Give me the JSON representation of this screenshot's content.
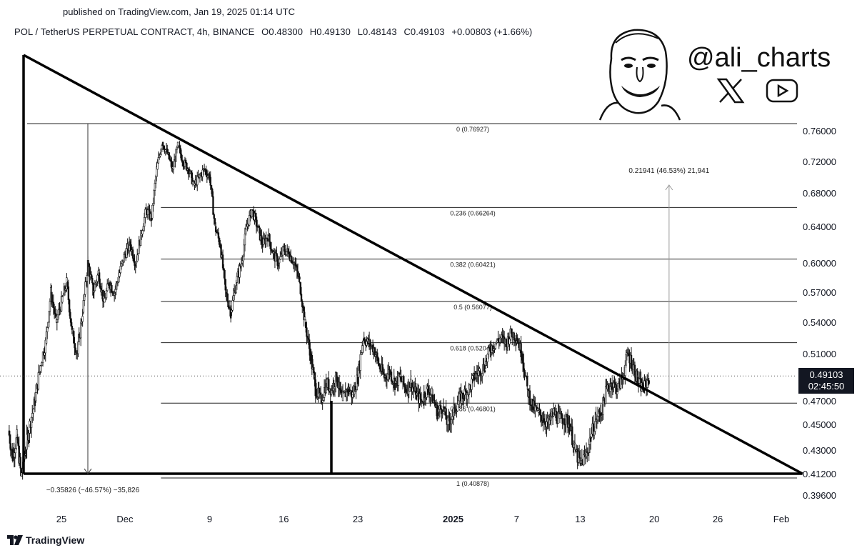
{
  "header": {
    "published": "published on TradingView.com, Jan 19, 2025 01:14 UTC",
    "symbol": "POL / TetherUS PERPETUAL CONTRACT, 4h, BINANCE",
    "open": "O0.48300",
    "high": "H0.49130",
    "low": "L0.48143",
    "close": "C0.49103",
    "change": "+0.00803 (+1.66%)"
  },
  "branding": {
    "handle": "@ali_charts",
    "footer": "TradingView",
    "icons": [
      "avatar-caricature-icon",
      "x-logo-icon",
      "youtube-icon",
      "tradingview-logo-icon"
    ]
  },
  "price_badge": {
    "price": "0.49103",
    "countdown": "02:45:50"
  },
  "chart_data": {
    "type": "candlestick",
    "interval": "4h",
    "y_ticks": [
      "0.76000",
      "0.72000",
      "0.68000",
      "0.64000",
      "0.60000",
      "0.57000",
      "0.54000",
      "0.51000",
      "0.47000",
      "0.45000",
      "0.43000",
      "0.41200",
      "0.39600"
    ],
    "y_tick_values": [
      0.76,
      0.72,
      0.68,
      0.64,
      0.6,
      0.57,
      0.54,
      0.51,
      0.47,
      0.45,
      0.43,
      0.412,
      0.396
    ],
    "x_ticks": [
      {
        "label": "25",
        "day": 25
      },
      {
        "label": "Dec",
        "day": 31
      },
      {
        "label": "9",
        "day": 39
      },
      {
        "label": "16",
        "day": 46
      },
      {
        "label": "23",
        "day": 53
      },
      {
        "label": "2025",
        "day": 62,
        "bold": true
      },
      {
        "label": "7",
        "day": 68
      },
      {
        "label": "13",
        "day": 74
      },
      {
        "label": "20",
        "day": 81
      },
      {
        "label": "26",
        "day": 87
      },
      {
        "label": "Feb",
        "day": 93
      }
    ],
    "fibonacci": [
      {
        "ratio": "0",
        "price": 0.76927,
        "label": "0 (0.76927)"
      },
      {
        "ratio": "0.236",
        "price": 0.66264,
        "label": "0.236 (0.66264)"
      },
      {
        "ratio": "0.382",
        "price": 0.60421,
        "label": "0.382 (0.60421)"
      },
      {
        "ratio": "0.5",
        "price": 0.56077,
        "label": "0.5 (0.56077)"
      },
      {
        "ratio": "0.618",
        "price": 0.52045,
        "label": "0.618 (0.52045)"
      },
      {
        "ratio": "0.786",
        "price": 0.46801,
        "label": "0.786 (0.46801)"
      },
      {
        "ratio": "1",
        "price": 0.40878,
        "label": "1 (0.40878)"
      }
    ],
    "measure_down": "−0.35826 (−46.57%) −35,826",
    "measure_up": "0.21941 (46.53%) 21,941",
    "triangle": {
      "apex_day": 19.5,
      "apex_price": 0.748,
      "top_touch_day": 37,
      "end_day": 95,
      "end_price": 0.412,
      "base_price": 0.412
    },
    "vertical_leg_day": 50.5,
    "price_path": [
      [
        20,
        0.445
      ],
      [
        20.4,
        0.425
      ],
      [
        20.8,
        0.44
      ],
      [
        21.2,
        0.41
      ],
      [
        21.6,
        0.43
      ],
      [
        22,
        0.45
      ],
      [
        22.5,
        0.47
      ],
      [
        23,
        0.5
      ],
      [
        23.5,
        0.52
      ],
      [
        24,
        0.57
      ],
      [
        24.5,
        0.54
      ],
      [
        25,
        0.56
      ],
      [
        25.5,
        0.58
      ],
      [
        26,
        0.53
      ],
      [
        26.5,
        0.51
      ],
      [
        27,
        0.55
      ],
      [
        27.5,
        0.6
      ],
      [
        28,
        0.57
      ],
      [
        28.5,
        0.59
      ],
      [
        29,
        0.56
      ],
      [
        29.5,
        0.58
      ],
      [
        30,
        0.57
      ],
      [
        30.5,
        0.59
      ],
      [
        31,
        0.61
      ],
      [
        31.5,
        0.62
      ],
      [
        32,
        0.6
      ],
      [
        32.5,
        0.63
      ],
      [
        33,
        0.66
      ],
      [
        33.5,
        0.65
      ],
      [
        34,
        0.71
      ],
      [
        34.5,
        0.745
      ],
      [
        35,
        0.73
      ],
      [
        35.5,
        0.71
      ],
      [
        36,
        0.74
      ],
      [
        36.5,
        0.72
      ],
      [
        37,
        0.71
      ],
      [
        37.5,
        0.69
      ],
      [
        38,
        0.7
      ],
      [
        38.5,
        0.71
      ],
      [
        39,
        0.7
      ],
      [
        39.5,
        0.64
      ],
      [
        40,
        0.62
      ],
      [
        40.5,
        0.57
      ],
      [
        41,
        0.55
      ],
      [
        41.5,
        0.58
      ],
      [
        42,
        0.6
      ],
      [
        42.5,
        0.64
      ],
      [
        43,
        0.66
      ],
      [
        43.5,
        0.64
      ],
      [
        44,
        0.62
      ],
      [
        44.5,
        0.63
      ],
      [
        45,
        0.61
      ],
      [
        45.5,
        0.6
      ],
      [
        46,
        0.615
      ],
      [
        46.5,
        0.61
      ],
      [
        47,
        0.6
      ],
      [
        47.5,
        0.58
      ],
      [
        48,
        0.54
      ],
      [
        48.5,
        0.51
      ],
      [
        49,
        0.48
      ],
      [
        49.5,
        0.47
      ],
      [
        50,
        0.485
      ],
      [
        50.5,
        0.48
      ],
      [
        51,
        0.49
      ],
      [
        51.5,
        0.47
      ],
      [
        52,
        0.48
      ],
      [
        52.5,
        0.475
      ],
      [
        53,
        0.49
      ],
      [
        53.5,
        0.525
      ],
      [
        54,
        0.52
      ],
      [
        54.5,
        0.515
      ],
      [
        55,
        0.5
      ],
      [
        55.5,
        0.49
      ],
      [
        56,
        0.495
      ],
      [
        56.5,
        0.485
      ],
      [
        57,
        0.49
      ],
      [
        57.5,
        0.48
      ],
      [
        58,
        0.485
      ],
      [
        58.5,
        0.475
      ],
      [
        59,
        0.47
      ],
      [
        59.5,
        0.48
      ],
      [
        60,
        0.475
      ],
      [
        60.5,
        0.46
      ],
      [
        61,
        0.465
      ],
      [
        61.5,
        0.45
      ],
      [
        62,
        0.46
      ],
      [
        62.5,
        0.47
      ],
      [
        63,
        0.475
      ],
      [
        63.5,
        0.48
      ],
      [
        64,
        0.49
      ],
      [
        64.5,
        0.495
      ],
      [
        65,
        0.5
      ],
      [
        65.5,
        0.515
      ],
      [
        66,
        0.52
      ],
      [
        66.5,
        0.525
      ],
      [
        67,
        0.52
      ],
      [
        67.5,
        0.53
      ],
      [
        68,
        0.525
      ],
      [
        68.5,
        0.51
      ],
      [
        69,
        0.48
      ],
      [
        69.5,
        0.465
      ],
      [
        70,
        0.46
      ],
      [
        70.5,
        0.455
      ],
      [
        71,
        0.45
      ],
      [
        71.5,
        0.46
      ],
      [
        72,
        0.455
      ],
      [
        72.5,
        0.455
      ],
      [
        73,
        0.45
      ],
      [
        73.5,
        0.43
      ],
      [
        74,
        0.42
      ],
      [
        74.5,
        0.425
      ],
      [
        75,
        0.44
      ],
      [
        75.5,
        0.455
      ],
      [
        76,
        0.46
      ],
      [
        76.5,
        0.48
      ],
      [
        77,
        0.485
      ],
      [
        77.5,
        0.48
      ],
      [
        78,
        0.49
      ],
      [
        78.5,
        0.51
      ],
      [
        79,
        0.5
      ],
      [
        79.5,
        0.485
      ],
      [
        80,
        0.48
      ],
      [
        80.5,
        0.49
      ]
    ]
  }
}
